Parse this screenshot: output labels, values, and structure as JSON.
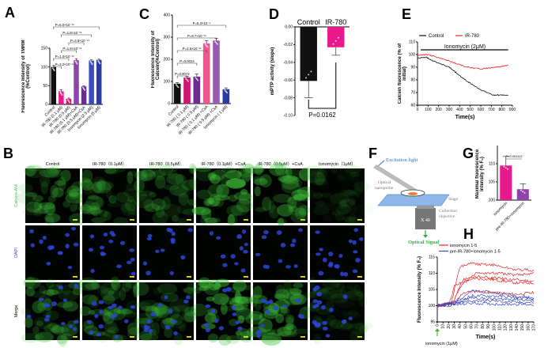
{
  "panel_labels": {
    "A": "A",
    "B": "B",
    "C": "C",
    "D": "D",
    "E": "E",
    "F": "F",
    "G": "G",
    "H": "H"
  },
  "colors": {
    "black": "#111111",
    "pink": "#e8198b",
    "magenta": "#d1146f",
    "purple": "#8e44ad",
    "dark_purple": "#6a2c8e",
    "blue": "#3b4cc0",
    "navy": "#2b3a9e",
    "red": "#e8272b",
    "calcein_green": "#3ec03a",
    "dapi_blue": "#2a45d8",
    "scale_bar": "#f0e000"
  },
  "panel_B": {
    "columns": [
      "Control",
      "IR-780（0.1μM）",
      "IR-780（0.5μM）",
      "IR-780（0.1μM）+CsA",
      "IR-780（0.5μM）+CsA",
      "Ionomycin（1μM）"
    ],
    "rows": [
      "Calcein-AM",
      "DAPI",
      "Merge"
    ]
  },
  "panel_F": {
    "excitation": "Excitation light",
    "probe_line1": "Optical",
    "probe_line2": "nanoprobe",
    "stage": "Stage",
    "objective": "X 40",
    "collection_line1": "Collection",
    "collection_line2": "objective",
    "signal": "Optical Signal"
  },
  "chart_data": [
    {
      "id": "A",
      "type": "bar",
      "ylabel": "Fluorescence Intensity of TMRM (%Control)",
      "ylim": [
        0,
        150
      ],
      "yticks": [
        0,
        50,
        100,
        150
      ],
      "categories": [
        "Control",
        "IR-780 (0.1 μM)",
        "IR-780 (0.5 μM)",
        "IR-780 (0.1 μM)+CsA",
        "IR-780 (0.5 μM)+CsA",
        "Ionomycin (2.5 μM)",
        "Ionomycin (5 μM)"
      ],
      "values": [
        100,
        35,
        15,
        118,
        48,
        117,
        119
      ],
      "errors": [
        4,
        4,
        2,
        4,
        2,
        2,
        2
      ],
      "bar_colors": [
        "#111111",
        "#e8198b",
        "#d1146f",
        "#8e44ad",
        "#6a2c8e",
        "#3b4cc0",
        "#2b3a9e"
      ],
      "comparisons": [
        {
          "a": 0,
          "b": 1,
          "label": "P=3.2×10⁻¹⁴"
        },
        {
          "a": 0,
          "b": 2,
          "label": "P=1.0×10⁻¹³"
        },
        {
          "a": 1,
          "b": 3,
          "label": "P=1.9×10⁻¹³"
        },
        {
          "a": 2,
          "b": 4,
          "label": "P=3.8×10⁻¹³"
        },
        {
          "a": 1,
          "b": 5,
          "label": "P=1.8×10⁻¹³"
        },
        {
          "a": 0,
          "b": 6,
          "label": "P=6.0×10⁻¹⁶"
        }
      ]
    },
    {
      "id": "C",
      "type": "bar",
      "ylabel": "Fluorescence Intensity of Calcein(%Control)",
      "ylim": [
        0,
        400
      ],
      "yticks": [
        0,
        100,
        200,
        300,
        400
      ],
      "categories": [
        "Control",
        "IR-780 ( 0.1 μM)",
        "IR-780 ( 0.5 μM)",
        "IR-780 ( 0.1 μM) +CsA",
        "IR-780 ( 0.5 μM) +CsA",
        "Ionomycin ( 1 μM)"
      ],
      "values": [
        90,
        118,
        122,
        272,
        285,
        65
      ],
      "errors": [
        5,
        5,
        12,
        12,
        10,
        6
      ],
      "bar_colors": [
        "#111111",
        "#d1146f",
        "#6a2c8e",
        "#f0558f",
        "#9b59b6",
        "#2b3a9e"
      ],
      "comparisons": [
        {
          "a": 0,
          "b": 1,
          "label": "P=0.0072"
        },
        {
          "a": 0,
          "b": 2,
          "label": "P=0.0024"
        },
        {
          "a": 0,
          "b": 3,
          "label": "P=2.6×10⁻¹¹"
        },
        {
          "a": 0,
          "b": 4,
          "label": "P=8.7×10⁻¹²"
        },
        {
          "a": 0,
          "b": 5,
          "label": "P=5.3×10⁻⁴"
        }
      ]
    },
    {
      "id": "D",
      "type": "bar",
      "ylabel": "mPTP activity (slope)",
      "ylim": [
        -0.1,
        0.0
      ],
      "yticks": [
        0.0,
        -0.02,
        -0.04,
        -0.06,
        -0.08,
        -0.1
      ],
      "ytick_labels": [
        "0.00",
        "-0.02",
        "-0.04",
        "-0.06",
        "-0.08",
        "-0.10"
      ],
      "categories": [
        "Control",
        "IR-780"
      ],
      "values": [
        -0.061,
        -0.023
      ],
      "errors": [
        0.019,
        0.009
      ],
      "bar_colors": [
        "#111111",
        "#e8198b"
      ],
      "annotation": "P=0.0162"
    },
    {
      "id": "E",
      "type": "line",
      "xlabel": "Time(s)",
      "ylabel": "Calcein fluorescence (% of initial)",
      "xlim": [
        0,
        900
      ],
      "ylim": [
        60,
        110
      ],
      "xticks": [
        0,
        100,
        200,
        300,
        400,
        500,
        600,
        700,
        800,
        900
      ],
      "yticks": [
        60,
        70,
        80,
        90,
        100,
        110
      ],
      "annotation": "Ionomycin (2μM)",
      "legend": "top",
      "series": [
        {
          "name": "Control",
          "color": "#111111",
          "x": [
            0,
            80,
            150,
            300,
            450,
            600,
            720,
            860
          ],
          "y": [
            97,
            98,
            95,
            90,
            80,
            72,
            68,
            68
          ]
        },
        {
          "name": "IR-780",
          "color": "#e8272b",
          "x": [
            0,
            100,
            200,
            300,
            450,
            600,
            750,
            860
          ],
          "y": [
            99.5,
            100,
            97.5,
            95,
            90.5,
            88.5,
            90,
            91.5
          ]
        }
      ]
    },
    {
      "id": "G",
      "type": "bar",
      "ylabel": "Maximal fluorescence intensity (% F₀)",
      "ylim": [
        100,
        115
      ],
      "yticks": [
        100,
        105,
        110
      ],
      "categories": [
        "ionomycin",
        "pre-IR-780+ionomycin"
      ],
      "values": [
        109.5,
        103
      ],
      "errors": [
        2.5,
        1.5
      ],
      "bar_colors": [
        "#e8198b",
        "#8e44ad"
      ],
      "annotation": "P=0.001112"
    },
    {
      "id": "H",
      "type": "line",
      "xlabel": "Time(s)",
      "ylabel": "Fluorescence Intensity (% F₀)",
      "xlim": [
        0,
        170
      ],
      "ylim": [
        95,
        115
      ],
      "xticks": [
        0,
        10,
        20,
        30,
        40,
        50,
        60,
        70,
        80,
        90,
        100,
        110,
        120,
        130,
        140,
        150,
        160,
        170
      ],
      "yticks": [
        95,
        100,
        105,
        110,
        115
      ],
      "annotation": "ionomycin (1μM)",
      "legend": "top",
      "legend_entries": [
        {
          "name": "ionomycin 1-5",
          "color": "#e8272b"
        },
        {
          "name": "pre-IR-780+ionomycin 1-5",
          "color": "#3b4cc0"
        }
      ],
      "series": [
        {
          "color": "#e8272b",
          "x": [
            0,
            25,
            40,
            60,
            100,
            140,
            170
          ],
          "y": [
            100,
            101,
            112,
            113,
            112.5,
            111,
            111
          ]
        },
        {
          "color": "#e8272b",
          "x": [
            0,
            28,
            45,
            70,
            100,
            140,
            170
          ],
          "y": [
            100,
            101,
            108,
            110,
            110,
            109.5,
            110
          ]
        },
        {
          "color": "#e8272b",
          "x": [
            0,
            28,
            45,
            70,
            100,
            140,
            170
          ],
          "y": [
            100,
            101,
            107,
            109,
            108.5,
            108,
            107.5
          ]
        },
        {
          "color": "#e8272b",
          "x": [
            0,
            30,
            45,
            70,
            100,
            140,
            170
          ],
          "y": [
            100,
            100.5,
            104,
            104.5,
            104,
            103.5,
            104
          ]
        },
        {
          "color": "#e8272b",
          "x": [
            0,
            20,
            30,
            60,
            100,
            140,
            170
          ],
          "y": [
            100,
            100,
            106,
            108.5,
            108,
            107,
            107
          ]
        },
        {
          "color": "#3b4cc0",
          "x": [
            0,
            30,
            60,
            100,
            140,
            170
          ],
          "y": [
            100,
            101,
            104.5,
            104,
            103,
            102.5
          ]
        },
        {
          "color": "#3b4cc0",
          "x": [
            0,
            30,
            60,
            100,
            140,
            170
          ],
          "y": [
            100,
            101,
            103,
            103,
            102.5,
            102
          ]
        },
        {
          "color": "#3b4cc0",
          "x": [
            0,
            30,
            60,
            100,
            140,
            170
          ],
          "y": [
            100,
            100.5,
            102.5,
            102,
            102,
            101.5
          ]
        },
        {
          "color": "#3b4cc0",
          "x": [
            0,
            30,
            60,
            100,
            140,
            170
          ],
          "y": [
            100,
            100.5,
            101.5,
            101.5,
            101,
            101
          ]
        },
        {
          "color": "#3b4cc0",
          "x": [
            0,
            30,
            60,
            100,
            140,
            170
          ],
          "y": [
            100,
            100.2,
            100.8,
            100.5,
            100.5,
            100.3
          ]
        }
      ]
    }
  ]
}
